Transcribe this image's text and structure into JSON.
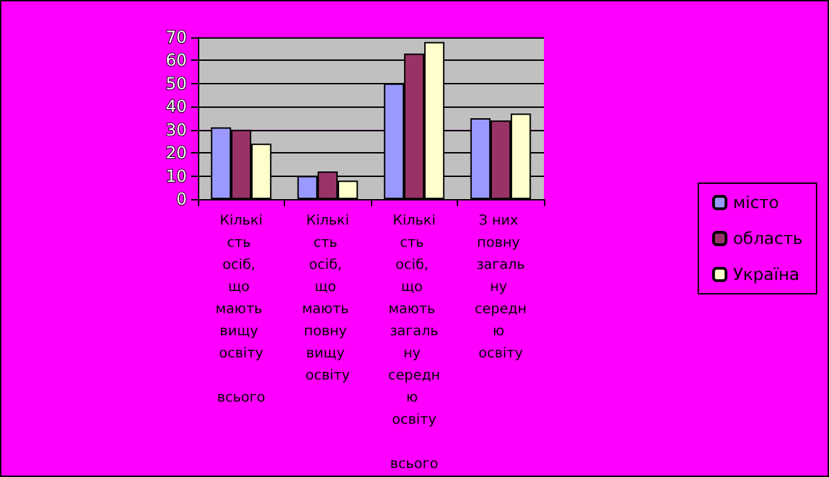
{
  "chart_data": {
    "type": "bar",
    "categories": [
      "Кількість осіб, що мають вищу освіту всього",
      "Кількість осіб, що мають повну вищу освіту",
      "Кількість осіб, що мають загальну середню освіту всього",
      "З них повну загальну середню освіту"
    ],
    "series": [
      {
        "name": "місто",
        "color": "#9999ff",
        "values": [
          31,
          10,
          50,
          35
        ]
      },
      {
        "name": "область",
        "color": "#993366",
        "values": [
          30,
          12,
          63,
          34
        ]
      },
      {
        "name": "Україна",
        "color": "#ffffcc",
        "values": [
          24,
          8,
          68,
          37
        ]
      }
    ],
    "ylim": [
      0,
      70
    ],
    "yticks": [
      0,
      10,
      20,
      30,
      40,
      50,
      60,
      70
    ],
    "grid": "y",
    "legend": "right"
  }
}
